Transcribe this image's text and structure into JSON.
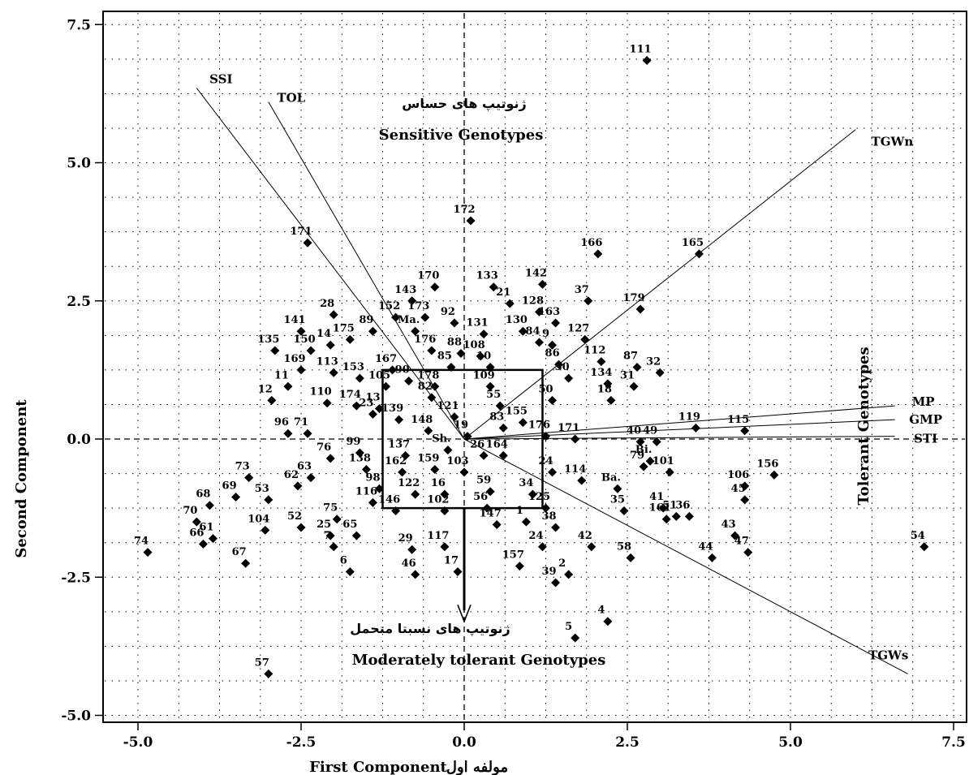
{
  "chart_data": {
    "type": "scatter",
    "xlabel": "First Component",
    "xlabel_fa": "مولفه اول",
    "ylabel": "Second Component",
    "xlim": [
      -5.3,
      7.7
    ],
    "ylim": [
      -5.4,
      7.7
    ],
    "xticks": [
      "-5.0",
      "-2.5",
      "0.0",
      "2.5",
      "5.0",
      "7.5"
    ],
    "xtick_values": [
      -5,
      -2.5,
      0,
      2.5,
      5,
      7.5
    ],
    "yticks": [
      "7.5",
      "5.0",
      "2.5",
      "0.0",
      "-2.5",
      "-5.0"
    ],
    "ytick_values": [
      7.5,
      5,
      2.5,
      0,
      -2.5,
      -5
    ],
    "grid": "dotted",
    "points": [
      {
        "label": "111",
        "x": 2.8,
        "y": 6.85
      },
      {
        "label": "172",
        "x": 0.1,
        "y": 3.95
      },
      {
        "label": "171",
        "x": -2.4,
        "y": 3.55
      },
      {
        "label": "166",
        "x": 2.05,
        "y": 3.35
      },
      {
        "label": "165",
        "x": 3.6,
        "y": 3.35
      },
      {
        "label": "170",
        "x": -0.45,
        "y": 2.75
      },
      {
        "label": "133",
        "x": 0.45,
        "y": 2.75
      },
      {
        "label": "142",
        "x": 1.2,
        "y": 2.8
      },
      {
        "label": "143",
        "x": -0.8,
        "y": 2.5
      },
      {
        "label": "21",
        "x": 0.7,
        "y": 2.45
      },
      {
        "label": "128",
        "x": 1.15,
        "y": 2.3
      },
      {
        "label": "37",
        "x": 1.9,
        "y": 2.5
      },
      {
        "label": "179",
        "x": 2.7,
        "y": 2.35
      },
      {
        "label": "163",
        "x": 1.4,
        "y": 2.1
      },
      {
        "label": "152",
        "x": -1.05,
        "y": 2.2
      },
      {
        "label": "173",
        "x": -0.6,
        "y": 2.2
      },
      {
        "label": "92",
        "x": -0.15,
        "y": 2.1
      },
      {
        "label": "131",
        "x": 0.3,
        "y": 1.9
      },
      {
        "label": "130",
        "x": 0.9,
        "y": 1.95
      },
      {
        "label": "84",
        "x": 1.15,
        "y": 1.75
      },
      {
        "label": "127",
        "x": 1.85,
        "y": 1.8
      },
      {
        "label": "28",
        "x": -2.0,
        "y": 2.25
      },
      {
        "label": "89",
        "x": -1.4,
        "y": 1.95
      },
      {
        "label": "141",
        "x": -2.5,
        "y": 1.95
      },
      {
        "label": "135",
        "x": -2.9,
        "y": 1.6
      },
      {
        "label": "150",
        "x": -2.35,
        "y": 1.6
      },
      {
        "label": "14",
        "x": -2.05,
        "y": 1.7
      },
      {
        "label": "175",
        "x": -1.75,
        "y": 1.8
      },
      {
        "label": "Ma.",
        "x": -0.75,
        "y": 1.95
      },
      {
        "label": "176",
        "x": -0.5,
        "y": 1.6
      },
      {
        "label": "88",
        "x": -0.05,
        "y": 1.55
      },
      {
        "label": "108",
        "x": 0.25,
        "y": 1.5
      },
      {
        "label": "9",
        "x": 1.35,
        "y": 1.7
      },
      {
        "label": "112",
        "x": 2.1,
        "y": 1.4
      },
      {
        "label": "87",
        "x": 2.65,
        "y": 1.3
      },
      {
        "label": "32",
        "x": 3.0,
        "y": 1.2
      },
      {
        "label": "169",
        "x": -2.5,
        "y": 1.25
      },
      {
        "label": "113",
        "x": -2.0,
        "y": 1.2
      },
      {
        "label": "153",
        "x": -1.6,
        "y": 1.1
      },
      {
        "label": "167",
        "x": -1.1,
        "y": 1.25
      },
      {
        "label": "85",
        "x": -0.2,
        "y": 1.3
      },
      {
        "label": "10",
        "x": 0.4,
        "y": 1.3
      },
      {
        "label": "86",
        "x": 1.45,
        "y": 1.35
      },
      {
        "label": "30",
        "x": 1.6,
        "y": 1.1
      },
      {
        "label": "134",
        "x": 2.2,
        "y": 1.0
      },
      {
        "label": "31",
        "x": 2.6,
        "y": 0.95
      },
      {
        "label": "11",
        "x": -2.7,
        "y": 0.95
      },
      {
        "label": "12",
        "x": -2.95,
        "y": 0.7
      },
      {
        "label": "110",
        "x": -2.1,
        "y": 0.65
      },
      {
        "label": "174",
        "x": -1.65,
        "y": 0.6
      },
      {
        "label": "23",
        "x": -1.4,
        "y": 0.45
      },
      {
        "label": "105",
        "x": -1.2,
        "y": 0.95
      },
      {
        "label": "90",
        "x": -0.85,
        "y": 1.05
      },
      {
        "label": "178",
        "x": -0.45,
        "y": 0.95
      },
      {
        "label": "82",
        "x": -0.5,
        "y": 0.75
      },
      {
        "label": "109",
        "x": 0.4,
        "y": 0.95
      },
      {
        "label": "55",
        "x": 0.55,
        "y": 0.6
      },
      {
        "label": "50",
        "x": 1.35,
        "y": 0.7
      },
      {
        "label": "18",
        "x": 2.25,
        "y": 0.7
      },
      {
        "label": "96",
        "x": -2.7,
        "y": 0.1
      },
      {
        "label": "71",
        "x": -2.4,
        "y": 0.1
      },
      {
        "label": "13",
        "x": -1.3,
        "y": 0.55
      },
      {
        "label": "139",
        "x": -1.0,
        "y": 0.35
      },
      {
        "label": "121",
        "x": -0.15,
        "y": 0.4
      },
      {
        "label": "155",
        "x": 0.9,
        "y": 0.3
      },
      {
        "label": "148",
        "x": -0.55,
        "y": 0.15
      },
      {
        "label": "19",
        "x": 0.05,
        "y": 0.05
      },
      {
        "label": "83",
        "x": 0.6,
        "y": 0.2
      },
      {
        "label": "176",
        "x": 1.25,
        "y": 0.05
      },
      {
        "label": "171",
        "x": 1.7,
        "y": 0.0
      },
      {
        "label": "40",
        "x": 2.7,
        "y": -0.05
      },
      {
        "label": "49",
        "x": 2.95,
        "y": -0.05
      },
      {
        "label": "119",
        "x": 3.55,
        "y": 0.2
      },
      {
        "label": "115",
        "x": 4.3,
        "y": 0.15
      },
      {
        "label": "76",
        "x": -2.05,
        "y": -0.35
      },
      {
        "label": "99",
        "x": -1.6,
        "y": -0.25
      },
      {
        "label": "137",
        "x": -0.9,
        "y": -0.3
      },
      {
        "label": "Sh.",
        "x": -0.25,
        "y": -0.2
      },
      {
        "label": "26",
        "x": 0.3,
        "y": -0.3
      },
      {
        "label": "164",
        "x": 0.6,
        "y": -0.3
      },
      {
        "label": "Bi.",
        "x": 2.85,
        "y": -0.4
      },
      {
        "label": "79",
        "x": 2.75,
        "y": -0.5
      },
      {
        "label": "101",
        "x": 3.15,
        "y": -0.6
      },
      {
        "label": "156",
        "x": 4.75,
        "y": -0.65
      },
      {
        "label": "73",
        "x": -3.3,
        "y": -0.7
      },
      {
        "label": "69",
        "x": -3.5,
        "y": -1.05
      },
      {
        "label": "62",
        "x": -2.55,
        "y": -0.85
      },
      {
        "label": "63",
        "x": -2.35,
        "y": -0.7
      },
      {
        "label": "53",
        "x": -3.0,
        "y": -1.1
      },
      {
        "label": "138",
        "x": -1.5,
        "y": -0.55
      },
      {
        "label": "98",
        "x": -1.3,
        "y": -0.9
      },
      {
        "label": "162",
        "x": -0.95,
        "y": -0.6
      },
      {
        "label": "159",
        "x": -0.45,
        "y": -0.55
      },
      {
        "label": "103",
        "x": 0.0,
        "y": -0.6
      },
      {
        "label": "114",
        "x": 1.8,
        "y": -0.75
      },
      {
        "label": "Ba.",
        "x": 2.35,
        "y": -0.9
      },
      {
        "label": "106",
        "x": 4.3,
        "y": -0.85
      },
      {
        "label": "45",
        "x": 4.3,
        "y": -1.1
      },
      {
        "label": "68",
        "x": -3.9,
        "y": -1.2
      },
      {
        "label": "116",
        "x": -1.4,
        "y": -1.15
      },
      {
        "label": "122",
        "x": -0.75,
        "y": -1.0
      },
      {
        "label": "16",
        "x": -0.3,
        "y": -1.0
      },
      {
        "label": "59",
        "x": 0.4,
        "y": -0.95
      },
      {
        "label": "34",
        "x": 1.05,
        "y": -1.0
      },
      {
        "label": "24",
        "x": 1.35,
        "y": -0.6
      },
      {
        "label": "35",
        "x": 2.45,
        "y": -1.3
      },
      {
        "label": "41",
        "x": 3.05,
        "y": -1.25
      },
      {
        "label": "51",
        "x": 3.25,
        "y": -1.4
      },
      {
        "label": "36",
        "x": 3.45,
        "y": -1.4
      },
      {
        "label": "70",
        "x": -4.1,
        "y": -1.5
      },
      {
        "label": "61",
        "x": -3.85,
        "y": -1.8
      },
      {
        "label": "104",
        "x": -3.05,
        "y": -1.65
      },
      {
        "label": "52",
        "x": -2.5,
        "y": -1.6
      },
      {
        "label": "75",
        "x": -1.95,
        "y": -1.45
      },
      {
        "label": "65",
        "x": -1.65,
        "y": -1.75
      },
      {
        "label": "146",
        "x": -1.05,
        "y": -1.3
      },
      {
        "label": "102",
        "x": -0.3,
        "y": -1.3
      },
      {
        "label": "56",
        "x": 0.35,
        "y": -1.25
      },
      {
        "label": "125",
        "x": 1.25,
        "y": -1.25
      },
      {
        "label": "38",
        "x": 1.4,
        "y": -1.6
      },
      {
        "label": "161",
        "x": 3.1,
        "y": -1.45
      },
      {
        "label": "74",
        "x": -4.85,
        "y": -2.05
      },
      {
        "label": "66",
        "x": -4.0,
        "y": -1.9
      },
      {
        "label": "67",
        "x": -3.35,
        "y": -2.25
      },
      {
        "label": "25",
        "x": -2.05,
        "y": -1.75
      },
      {
        "label": "7",
        "x": -2.0,
        "y": -1.95
      },
      {
        "label": "147",
        "x": 0.5,
        "y": -1.55
      },
      {
        "label": "1",
        "x": 0.95,
        "y": -1.5
      },
      {
        "label": "42",
        "x": 1.95,
        "y": -1.95
      },
      {
        "label": "58",
        "x": 2.55,
        "y": -2.15
      },
      {
        "label": "44",
        "x": 3.8,
        "y": -2.15
      },
      {
        "label": "43",
        "x": 4.15,
        "y": -1.75
      },
      {
        "label": "47",
        "x": 4.35,
        "y": -2.05
      },
      {
        "label": "54",
        "x": 7.05,
        "y": -1.95
      },
      {
        "label": "117",
        "x": -0.3,
        "y": -1.95
      },
      {
        "label": "29",
        "x": -0.8,
        "y": -2.0
      },
      {
        "label": "6",
        "x": -1.75,
        "y": -2.4
      },
      {
        "label": "46",
        "x": -0.75,
        "y": -2.45
      },
      {
        "label": "17",
        "x": -0.1,
        "y": -2.4
      },
      {
        "label": "157",
        "x": 0.85,
        "y": -2.3
      },
      {
        "label": "24",
        "x": 1.2,
        "y": -1.95
      },
      {
        "label": "2",
        "x": 1.6,
        "y": -2.45
      },
      {
        "label": "39",
        "x": 1.4,
        "y": -2.6
      },
      {
        "label": "4",
        "x": 2.2,
        "y": -3.3
      },
      {
        "label": "5",
        "x": 1.7,
        "y": -3.6
      },
      {
        "label": "57",
        "x": -3.0,
        "y": -4.25
      }
    ],
    "vectors": [
      {
        "name": "SSI",
        "x": -4.1,
        "y": 6.35
      },
      {
        "name": "TOL",
        "x": -3.0,
        "y": 6.1
      },
      {
        "name": "TGWn",
        "x": 6.0,
        "y": 5.6
      },
      {
        "name": "MP",
        "x": 6.6,
        "y": 0.6
      },
      {
        "name": "GMP",
        "x": 6.6,
        "y": 0.35
      },
      {
        "name": "STI",
        "x": 6.6,
        "y": 0.05
      },
      {
        "name": "TGWs",
        "x": 6.8,
        "y": -4.25
      }
    ],
    "annotations": {
      "sensitive_fa": "ژنوتیپ های حساس",
      "sensitive": "Sensitive Genotypes",
      "tolerant": "Tolerant Genotypes",
      "moderate_fa": "ژنوتیپ های نسبتا متحمل",
      "moderate": "Moderately tolerant Genotypes"
    }
  }
}
